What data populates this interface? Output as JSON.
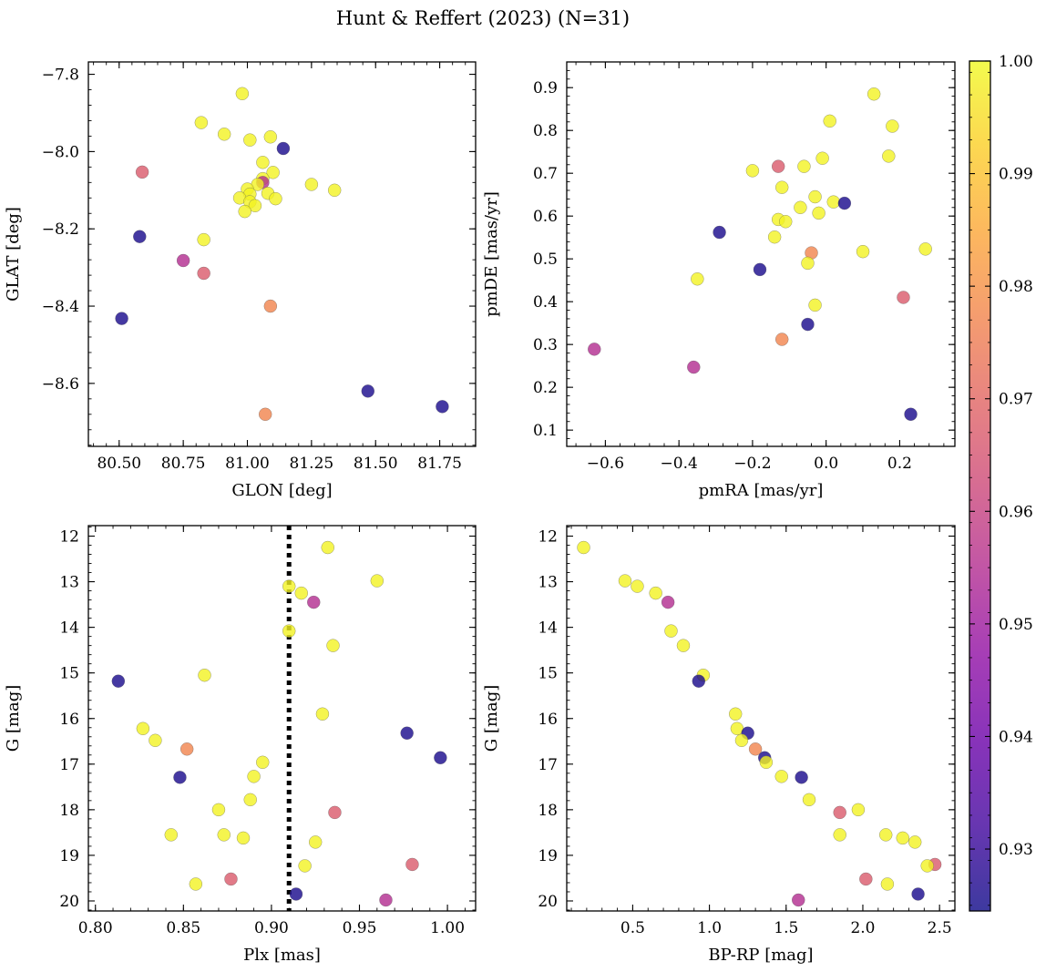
{
  "figure": {
    "title": "Hunt & Reffert (2023) (N=31)"
  },
  "colorbar": {
    "min": 0.9245,
    "max": 1.0,
    "ticks": [
      0.93,
      0.94,
      0.95,
      0.96,
      0.97,
      0.98,
      0.99,
      1.0
    ],
    "tick_labels": [
      "0.93",
      "0.94",
      "0.95",
      "0.96",
      "0.97",
      "0.98",
      "0.99",
      "1.00"
    ],
    "colormap": "plasma",
    "alpha": 0.8
  },
  "chart_data": [
    {
      "type": "scatter",
      "id": "glon-glat",
      "xlabel": "GLON [deg]",
      "ylabel": "GLAT [deg]",
      "xlim": [
        80.38,
        81.89
      ],
      "ylim": [
        -8.763,
        -7.768
      ],
      "y_inverted": true,
      "xticks": [
        80.5,
        80.75,
        81.0,
        81.25,
        81.5,
        81.75
      ],
      "xtick_labels": [
        "80.50",
        "80.75",
        "81.00",
        "81.25",
        "81.50",
        "81.75"
      ],
      "yticks": [
        -7.8,
        -8.0,
        -8.2,
        -8.4,
        -8.6
      ],
      "ytick_labels": [
        "−7.8",
        "−8.0",
        "−8.2",
        "−8.4",
        "−8.6"
      ],
      "points": [
        {
          "x": 80.98,
          "y": -7.85,
          "c": 0.999
        },
        {
          "x": 80.82,
          "y": -7.925,
          "c": 0.999
        },
        {
          "x": 80.91,
          "y": -7.955,
          "c": 0.999
        },
        {
          "x": 81.01,
          "y": -7.97,
          "c": 0.999
        },
        {
          "x": 81.09,
          "y": -7.962,
          "c": 0.999
        },
        {
          "x": 81.14,
          "y": -7.992,
          "c": 0.926
        },
        {
          "x": 81.06,
          "y": -8.028,
          "c": 0.999
        },
        {
          "x": 80.59,
          "y": -8.053,
          "c": 0.967
        },
        {
          "x": 81.1,
          "y": -8.054,
          "c": 0.999
        },
        {
          "x": 81.06,
          "y": -8.07,
          "c": 0.999
        },
        {
          "x": 81.06,
          "y": -8.08,
          "c": 0.955
        },
        {
          "x": 81.04,
          "y": -8.085,
          "c": 0.999
        },
        {
          "x": 81.25,
          "y": -8.085,
          "c": 0.999
        },
        {
          "x": 81.0,
          "y": -8.097,
          "c": 0.999
        },
        {
          "x": 81.34,
          "y": -8.1,
          "c": 0.999
        },
        {
          "x": 81.08,
          "y": -8.108,
          "c": 0.999
        },
        {
          "x": 81.01,
          "y": -8.11,
          "c": 0.999
        },
        {
          "x": 80.97,
          "y": -8.12,
          "c": 0.999
        },
        {
          "x": 81.11,
          "y": -8.122,
          "c": 0.999
        },
        {
          "x": 81.01,
          "y": -8.13,
          "c": 0.999
        },
        {
          "x": 81.03,
          "y": -8.14,
          "c": 0.999
        },
        {
          "x": 80.99,
          "y": -8.155,
          "c": 0.999
        },
        {
          "x": 80.58,
          "y": -8.22,
          "c": 0.926
        },
        {
          "x": 80.83,
          "y": -8.228,
          "c": 0.999
        },
        {
          "x": 80.75,
          "y": -8.282,
          "c": 0.955
        },
        {
          "x": 80.83,
          "y": -8.315,
          "c": 0.967
        },
        {
          "x": 81.09,
          "y": -8.4,
          "c": 0.977
        },
        {
          "x": 80.51,
          "y": -8.432,
          "c": 0.926
        },
        {
          "x": 81.47,
          "y": -8.62,
          "c": 0.926
        },
        {
          "x": 81.76,
          "y": -8.66,
          "c": 0.926
        },
        {
          "x": 81.07,
          "y": -8.68,
          "c": 0.977
        }
      ]
    },
    {
      "type": "scatter",
      "id": "pmra-pmde",
      "xlabel": "pmRA [mas/yr]",
      "ylabel": "pmDE [mas/yr]",
      "xlim": [
        -0.705,
        0.35
      ],
      "ylim": [
        0.062,
        0.96
      ],
      "y_inverted": false,
      "xticks": [
        -0.6,
        -0.4,
        -0.2,
        0.0,
        0.2
      ],
      "xtick_labels": [
        "−0.6",
        "−0.4",
        "−0.2",
        "0.0",
        "0.2"
      ],
      "yticks": [
        0.1,
        0.2,
        0.3,
        0.4,
        0.5,
        0.6,
        0.7,
        0.8,
        0.9
      ],
      "ytick_labels": [
        "0.1",
        "0.2",
        "0.3",
        "0.4",
        "0.5",
        "0.6",
        "0.7",
        "0.8",
        "0.9"
      ],
      "points": [
        {
          "x": 0.13,
          "y": 0.885,
          "c": 0.999
        },
        {
          "x": 0.01,
          "y": 0.822,
          "c": 0.999
        },
        {
          "x": 0.18,
          "y": 0.81,
          "c": 0.999
        },
        {
          "x": 0.17,
          "y": 0.74,
          "c": 0.999
        },
        {
          "x": -0.01,
          "y": 0.735,
          "c": 0.999
        },
        {
          "x": -0.13,
          "y": 0.716,
          "c": 0.967
        },
        {
          "x": -0.06,
          "y": 0.716,
          "c": 0.999
        },
        {
          "x": -0.2,
          "y": 0.706,
          "c": 0.999
        },
        {
          "x": -0.12,
          "y": 0.667,
          "c": 0.999
        },
        {
          "x": -0.03,
          "y": 0.645,
          "c": 0.999
        },
        {
          "x": 0.02,
          "y": 0.633,
          "c": 0.999
        },
        {
          "x": 0.05,
          "y": 0.63,
          "c": 0.926
        },
        {
          "x": -0.07,
          "y": 0.62,
          "c": 0.999
        },
        {
          "x": -0.02,
          "y": 0.607,
          "c": 0.999
        },
        {
          "x": -0.13,
          "y": 0.592,
          "c": 0.999
        },
        {
          "x": -0.11,
          "y": 0.587,
          "c": 0.999
        },
        {
          "x": -0.29,
          "y": 0.562,
          "c": 0.926
        },
        {
          "x": -0.14,
          "y": 0.551,
          "c": 0.999
        },
        {
          "x": 0.27,
          "y": 0.523,
          "c": 0.999
        },
        {
          "x": 0.1,
          "y": 0.517,
          "c": 0.999
        },
        {
          "x": -0.04,
          "y": 0.514,
          "c": 0.977
        },
        {
          "x": -0.05,
          "y": 0.49,
          "c": 0.999
        },
        {
          "x": -0.18,
          "y": 0.475,
          "c": 0.926
        },
        {
          "x": -0.35,
          "y": 0.453,
          "c": 0.999
        },
        {
          "x": 0.21,
          "y": 0.41,
          "c": 0.967
        },
        {
          "x": -0.03,
          "y": 0.392,
          "c": 0.999
        },
        {
          "x": -0.05,
          "y": 0.347,
          "c": 0.926
        },
        {
          "x": -0.12,
          "y": 0.312,
          "c": 0.977
        },
        {
          "x": -0.63,
          "y": 0.289,
          "c": 0.955
        },
        {
          "x": -0.36,
          "y": 0.247,
          "c": 0.955
        },
        {
          "x": 0.23,
          "y": 0.137,
          "c": 0.926
        }
      ]
    },
    {
      "type": "scatter",
      "id": "plx-g",
      "xlabel": "Plx [mas]",
      "ylabel": "G [mag]",
      "xlim": [
        0.796,
        1.016
      ],
      "ylim": [
        20.22,
        11.77
      ],
      "y_inverted": true,
      "xticks": [
        0.8,
        0.85,
        0.9,
        0.95,
        1.0
      ],
      "xtick_labels": [
        "0.80",
        "0.85",
        "0.90",
        "0.95",
        "1.00"
      ],
      "yticks": [
        12,
        13,
        14,
        15,
        16,
        17,
        18,
        19,
        20
      ],
      "ytick_labels": [
        "12",
        "13",
        "14",
        "15",
        "16",
        "17",
        "18",
        "19",
        "20"
      ],
      "vline": {
        "x": 0.91,
        "style": "dotted"
      },
      "points": [
        {
          "x": 0.932,
          "y": 12.25,
          "c": 0.999
        },
        {
          "x": 0.96,
          "y": 12.98,
          "c": 0.999
        },
        {
          "x": 0.91,
          "y": 13.1,
          "c": 0.999
        },
        {
          "x": 0.917,
          "y": 13.25,
          "c": 0.999
        },
        {
          "x": 0.924,
          "y": 13.45,
          "c": 0.955
        },
        {
          "x": 0.91,
          "y": 14.08,
          "c": 0.999
        },
        {
          "x": 0.935,
          "y": 14.4,
          "c": 0.999
        },
        {
          "x": 0.862,
          "y": 15.05,
          "c": 0.999
        },
        {
          "x": 0.813,
          "y": 15.18,
          "c": 0.926
        },
        {
          "x": 0.929,
          "y": 15.9,
          "c": 0.999
        },
        {
          "x": 0.827,
          "y": 16.22,
          "c": 0.999
        },
        {
          "x": 0.977,
          "y": 16.32,
          "c": 0.926
        },
        {
          "x": 0.834,
          "y": 16.48,
          "c": 0.999
        },
        {
          "x": 0.852,
          "y": 16.67,
          "c": 0.977
        },
        {
          "x": 0.996,
          "y": 16.86,
          "c": 0.926
        },
        {
          "x": 0.895,
          "y": 16.96,
          "c": 0.999
        },
        {
          "x": 0.89,
          "y": 17.27,
          "c": 0.999
        },
        {
          "x": 0.848,
          "y": 17.29,
          "c": 0.926
        },
        {
          "x": 0.888,
          "y": 17.78,
          "c": 0.999
        },
        {
          "x": 0.87,
          "y": 18.0,
          "c": 0.999
        },
        {
          "x": 0.936,
          "y": 18.06,
          "c": 0.967
        },
        {
          "x": 0.843,
          "y": 18.55,
          "c": 0.999
        },
        {
          "x": 0.873,
          "y": 18.55,
          "c": 0.999
        },
        {
          "x": 0.884,
          "y": 18.62,
          "c": 0.999
        },
        {
          "x": 0.925,
          "y": 18.71,
          "c": 0.999
        },
        {
          "x": 0.98,
          "y": 19.2,
          "c": 0.967
        },
        {
          "x": 0.919,
          "y": 19.23,
          "c": 0.999
        },
        {
          "x": 0.877,
          "y": 19.52,
          "c": 0.967
        },
        {
          "x": 0.857,
          "y": 19.63,
          "c": 0.999
        },
        {
          "x": 0.914,
          "y": 19.85,
          "c": 0.926
        },
        {
          "x": 0.965,
          "y": 19.98,
          "c": 0.955
        }
      ]
    },
    {
      "type": "scatter",
      "id": "bprp-g",
      "xlabel": "BP-RP [mag]",
      "ylabel": "G [mag]",
      "xlim": [
        0.07,
        2.6
      ],
      "ylim": [
        20.22,
        11.77
      ],
      "y_inverted": true,
      "xticks": [
        0.5,
        1.0,
        1.5,
        2.0,
        2.5
      ],
      "xtick_labels": [
        "0.5",
        "1.0",
        "1.5",
        "2.0",
        "2.5"
      ],
      "yticks": [
        12,
        13,
        14,
        15,
        16,
        17,
        18,
        19,
        20
      ],
      "ytick_labels": [
        "12",
        "13",
        "14",
        "15",
        "16",
        "17",
        "18",
        "19",
        "20"
      ],
      "points": [
        {
          "x": 0.18,
          "y": 12.25,
          "c": 0.999
        },
        {
          "x": 0.45,
          "y": 12.98,
          "c": 0.999
        },
        {
          "x": 0.53,
          "y": 13.1,
          "c": 0.999
        },
        {
          "x": 0.65,
          "y": 13.25,
          "c": 0.999
        },
        {
          "x": 0.73,
          "y": 13.45,
          "c": 0.955
        },
        {
          "x": 0.75,
          "y": 14.08,
          "c": 0.999
        },
        {
          "x": 0.83,
          "y": 14.4,
          "c": 0.999
        },
        {
          "x": 0.96,
          "y": 15.05,
          "c": 0.999
        },
        {
          "x": 0.93,
          "y": 15.18,
          "c": 0.926
        },
        {
          "x": 1.17,
          "y": 15.9,
          "c": 0.999
        },
        {
          "x": 1.18,
          "y": 16.22,
          "c": 0.999
        },
        {
          "x": 1.25,
          "y": 16.32,
          "c": 0.926
        },
        {
          "x": 1.21,
          "y": 16.48,
          "c": 0.999
        },
        {
          "x": 1.3,
          "y": 16.67,
          "c": 0.977
        },
        {
          "x": 1.36,
          "y": 16.86,
          "c": 0.926
        },
        {
          "x": 1.37,
          "y": 16.96,
          "c": 0.999
        },
        {
          "x": 1.47,
          "y": 17.27,
          "c": 0.999
        },
        {
          "x": 1.6,
          "y": 17.29,
          "c": 0.926
        },
        {
          "x": 1.65,
          "y": 17.78,
          "c": 0.999
        },
        {
          "x": 1.97,
          "y": 18.0,
          "c": 0.999
        },
        {
          "x": 1.85,
          "y": 18.06,
          "c": 0.967
        },
        {
          "x": 1.85,
          "y": 18.55,
          "c": 0.999
        },
        {
          "x": 2.15,
          "y": 18.55,
          "c": 0.999
        },
        {
          "x": 2.26,
          "y": 18.62,
          "c": 0.999
        },
        {
          "x": 2.34,
          "y": 18.71,
          "c": 0.999
        },
        {
          "x": 2.47,
          "y": 19.2,
          "c": 0.967
        },
        {
          "x": 2.42,
          "y": 19.23,
          "c": 0.999
        },
        {
          "x": 2.02,
          "y": 19.52,
          "c": 0.967
        },
        {
          "x": 2.16,
          "y": 19.63,
          "c": 0.999
        },
        {
          "x": 2.36,
          "y": 19.85,
          "c": 0.926
        },
        {
          "x": 1.58,
          "y": 19.98,
          "c": 0.955
        }
      ]
    }
  ]
}
